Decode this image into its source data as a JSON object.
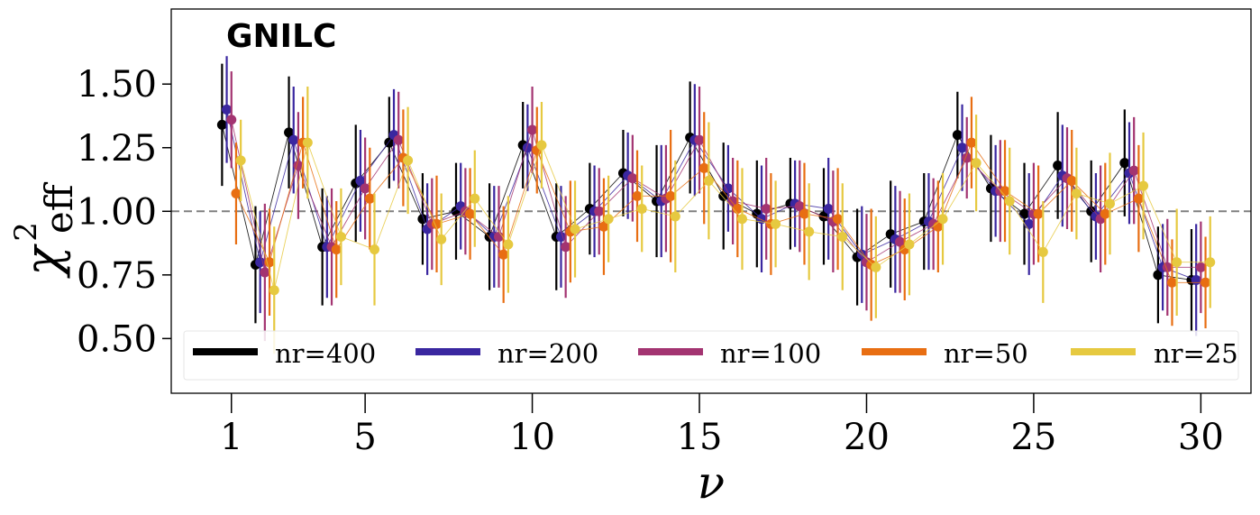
{
  "chart_data": {
    "type": "scatter",
    "title": "GNILC",
    "xlabel": "ν",
    "ylabel": "χ",
    "ylabel_superscript": "2",
    "ylabel_subscript": "eff",
    "xlim": [
      -0.8,
      31.5
    ],
    "ylim": [
      0.285,
      1.795
    ],
    "xticks": [
      1,
      5,
      10,
      15,
      20,
      25,
      30
    ],
    "xtick_labels": [
      "1",
      "5",
      "10",
      "15",
      "20",
      "25",
      "30"
    ],
    "yticks": [
      0.5,
      0.75,
      1.0,
      1.25,
      1.5
    ],
    "ytick_labels": [
      "0.50",
      "0.75",
      "1.00",
      "1.25",
      "1.50"
    ],
    "reference_line": 1.0,
    "x": [
      1,
      2,
      3,
      4,
      5,
      6,
      7,
      8,
      9,
      10,
      11,
      12,
      13,
      14,
      15,
      16,
      17,
      18,
      19,
      20,
      21,
      22,
      23,
      24,
      25,
      26,
      27,
      28,
      29,
      30
    ],
    "series": [
      {
        "name": "nr=400",
        "color": "#000000",
        "offset": -0.28,
        "values": [
          1.34,
          0.79,
          1.31,
          0.86,
          1.11,
          1.27,
          0.97,
          1.0,
          0.9,
          1.26,
          0.9,
          1.01,
          1.15,
          1.04,
          1.29,
          1.06,
          0.99,
          1.03,
          0.98,
          0.82,
          0.91,
          0.96,
          1.3,
          1.09,
          0.99,
          1.18,
          1.0,
          1.19,
          0.75,
          0.73
        ],
        "errors": [
          0.24,
          0.23,
          0.22,
          0.23,
          0.23,
          0.18,
          0.18,
          0.19,
          0.21,
          0.17,
          0.21,
          0.18,
          0.17,
          0.22,
          0.22,
          0.21,
          0.21,
          0.18,
          0.19,
          0.19,
          0.21,
          0.19,
          0.17,
          0.21,
          0.2,
          0.21,
          0.2,
          0.21,
          0.19,
          0.2
        ]
      },
      {
        "name": "nr=200",
        "color": "#3a27a0",
        "offset": -0.14,
        "values": [
          1.4,
          0.8,
          1.28,
          0.86,
          1.12,
          1.3,
          0.93,
          1.02,
          0.9,
          1.25,
          0.9,
          1.0,
          1.14,
          1.04,
          1.28,
          1.09,
          0.97,
          1.03,
          1.01,
          0.83,
          0.89,
          0.96,
          1.25,
          1.08,
          0.95,
          1.14,
          0.98,
          1.15,
          0.78,
          0.73
        ],
        "errors": [
          0.21,
          0.2,
          0.21,
          0.2,
          0.2,
          0.18,
          0.18,
          0.17,
          0.2,
          0.17,
          0.2,
          0.18,
          0.17,
          0.22,
          0.22,
          0.17,
          0.21,
          0.17,
          0.2,
          0.19,
          0.21,
          0.19,
          0.17,
          0.18,
          0.2,
          0.2,
          0.17,
          0.2,
          0.17,
          0.22
        ]
      },
      {
        "name": "nr=100",
        "color": "#a33471",
        "offset": 0.0,
        "values": [
          1.36,
          0.76,
          1.18,
          0.86,
          1.09,
          1.28,
          0.95,
          1.0,
          0.9,
          1.32,
          0.86,
          1.0,
          1.13,
          1.05,
          1.28,
          1.04,
          1.01,
          1.02,
          0.96,
          0.8,
          0.88,
          0.95,
          1.21,
          1.08,
          0.99,
          1.13,
          0.97,
          1.16,
          0.78,
          0.78
        ],
        "errors": [
          0.19,
          0.27,
          0.21,
          0.23,
          0.2,
          0.19,
          0.18,
          0.17,
          0.2,
          0.17,
          0.2,
          0.17,
          0.17,
          0.21,
          0.21,
          0.17,
          0.2,
          0.18,
          0.2,
          0.19,
          0.2,
          0.18,
          0.16,
          0.2,
          0.2,
          0.2,
          0.21,
          0.21,
          0.19,
          0.18
        ]
      },
      {
        "name": "nr=50",
        "color": "#e86e12",
        "offset": 0.14,
        "values": [
          1.07,
          0.8,
          1.27,
          0.85,
          1.05,
          1.21,
          0.95,
          0.99,
          0.83,
          1.24,
          0.92,
          0.94,
          1.06,
          1.06,
          1.17,
          1.01,
          0.95,
          0.99,
          0.97,
          0.79,
          0.85,
          0.94,
          1.27,
          1.08,
          0.99,
          1.12,
          0.99,
          1.05,
          0.72,
          0.72
        ],
        "errors": [
          0.2,
          0.21,
          0.18,
          0.19,
          0.2,
          0.19,
          0.19,
          0.18,
          0.19,
          0.17,
          0.2,
          0.19,
          0.18,
          0.26,
          0.22,
          0.19,
          0.2,
          0.2,
          0.2,
          0.22,
          0.2,
          0.18,
          0.18,
          0.2,
          0.19,
          0.2,
          0.2,
          0.21,
          0.17,
          0.18
        ]
      },
      {
        "name": "nr=25",
        "color": "#e6c940",
        "offset": 0.28,
        "values": [
          1.2,
          0.69,
          1.27,
          0.9,
          0.85,
          1.2,
          0.89,
          1.05,
          0.87,
          1.26,
          0.93,
          0.97,
          1.01,
          0.98,
          1.12,
          0.97,
          0.95,
          0.92,
          0.9,
          0.78,
          0.87,
          0.97,
          1.19,
          1.04,
          0.84,
          1.07,
          1.03,
          1.1,
          0.8,
          0.8
        ],
        "errors": [
          0.16,
          0.25,
          0.22,
          0.19,
          0.22,
          0.21,
          0.18,
          0.19,
          0.19,
          0.17,
          0.19,
          0.17,
          0.17,
          0.22,
          0.23,
          0.2,
          0.17,
          0.19,
          0.21,
          0.2,
          0.2,
          0.18,
          0.19,
          0.21,
          0.2,
          0.18,
          0.2,
          0.21,
          0.21,
          0.18
        ]
      }
    ],
    "legend_position": "bottom"
  }
}
